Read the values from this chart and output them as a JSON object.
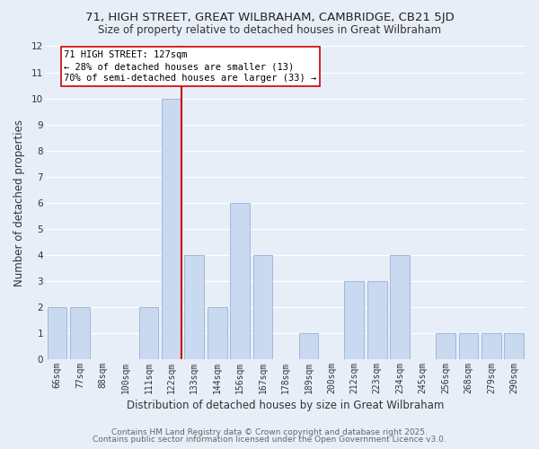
{
  "title": "71, HIGH STREET, GREAT WILBRAHAM, CAMBRIDGE, CB21 5JD",
  "subtitle": "Size of property relative to detached houses in Great Wilbraham",
  "xlabel": "Distribution of detached houses by size in Great Wilbraham",
  "ylabel": "Number of detached properties",
  "bar_labels": [
    "66sqm",
    "77sqm",
    "88sqm",
    "100sqm",
    "111sqm",
    "122sqm",
    "133sqm",
    "144sqm",
    "156sqm",
    "167sqm",
    "178sqm",
    "189sqm",
    "200sqm",
    "212sqm",
    "223sqm",
    "234sqm",
    "245sqm",
    "256sqm",
    "268sqm",
    "279sqm",
    "290sqm"
  ],
  "bar_values": [
    2,
    2,
    0,
    0,
    2,
    10,
    4,
    2,
    6,
    4,
    0,
    1,
    0,
    3,
    3,
    4,
    0,
    1,
    1,
    1,
    1
  ],
  "bar_color": "#c9d9f0",
  "bar_edge_color": "#a0b8d8",
  "highlight_index": 5,
  "highlight_line_color": "#cc0000",
  "annotation_title": "71 HIGH STREET: 127sqm",
  "annotation_line1": "← 28% of detached houses are smaller (13)",
  "annotation_line2": "70% of semi-detached houses are larger (33) →",
  "annotation_box_color": "#ffffff",
  "annotation_box_edge": "#cc0000",
  "ylim": [
    0,
    12
  ],
  "yticks": [
    0,
    1,
    2,
    3,
    4,
    5,
    6,
    7,
    8,
    9,
    10,
    11,
    12
  ],
  "background_color": "#e8eef8",
  "plot_background": "#e8eef8",
  "footer1": "Contains HM Land Registry data © Crown copyright and database right 2025.",
  "footer2": "Contains public sector information licensed under the Open Government Licence v3.0.",
  "title_fontsize": 9.5,
  "subtitle_fontsize": 8.5,
  "axis_label_fontsize": 8.5,
  "tick_fontsize": 7.0,
  "annotation_fontsize": 7.5,
  "footer_fontsize": 6.5
}
